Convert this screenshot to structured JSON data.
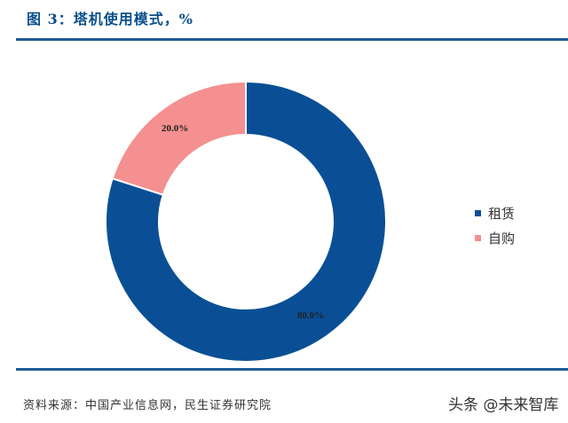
{
  "header": {
    "title": "图 3：塔机使用模式，%"
  },
  "chart_data": {
    "type": "pie",
    "subtype": "donut",
    "title": "塔机使用模式，%",
    "categories": [
      "租赁",
      "自购"
    ],
    "values": [
      80.0,
      20.0
    ],
    "data_labels": [
      "80.0%",
      "20.0%"
    ],
    "colors": [
      "#0a4f95",
      "#f4908f"
    ],
    "legend_position": "right"
  },
  "legend": {
    "items": [
      {
        "label": "租赁",
        "color": "#0a4f95"
      },
      {
        "label": "自购",
        "color": "#f4908f"
      }
    ]
  },
  "footer": {
    "source": "资料来源：中国产业信息网，民生证券研究院",
    "watermark": "头条 @未来智库"
  }
}
